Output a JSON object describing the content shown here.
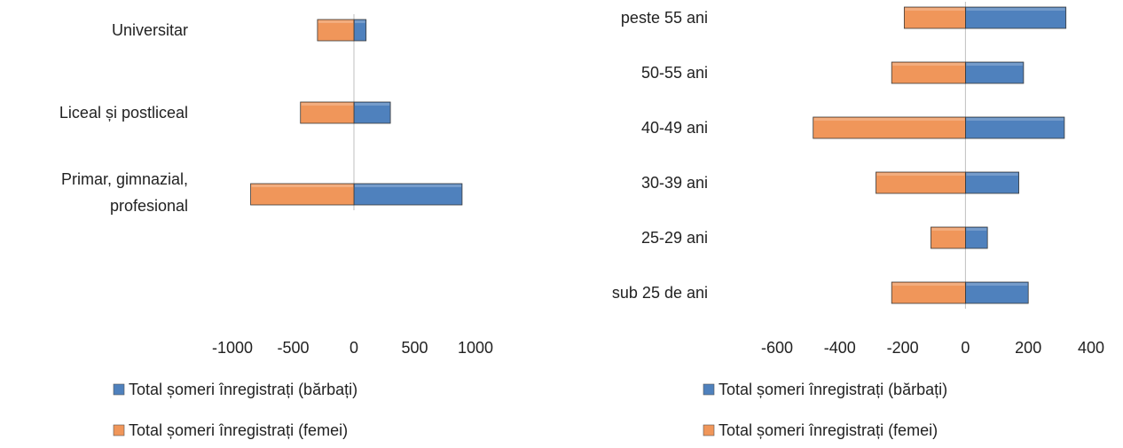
{
  "colors": {
    "male": "#4f81bd",
    "female": "#f0965a",
    "text": "#222222"
  },
  "chart_data": [
    {
      "type": "bar",
      "orientation": "horizontal",
      "stacking": "diverging",
      "categories": [
        "Universitar",
        "Liceal și postliceal",
        "Primar, gimnazial, profesional"
      ],
      "series": [
        {
          "name": "Total șomeri înregistrați (bărbați)",
          "values": [
            100,
            300,
            890
          ],
          "color": "#4f81bd"
        },
        {
          "name": "Total șomeri înregistrați (femei)",
          "values": [
            -300,
            -440,
            -850
          ],
          "color": "#f0965a"
        }
      ],
      "xlim": [
        -1000,
        1000
      ],
      "xticks": [
        "-1000",
        "-500",
        "0",
        "500",
        "1000"
      ],
      "xtick_values": [
        -1000,
        -500,
        0,
        500,
        1000
      ],
      "legend_position": "bottom",
      "grid": false
    },
    {
      "type": "bar",
      "orientation": "horizontal",
      "stacking": "diverging",
      "categories": [
        "peste 55 ani",
        "50-55 ani",
        "40-49 ani",
        "30-39 ani",
        "25-29 ani",
        "sub 25 de ani"
      ],
      "series": [
        {
          "name": "Total șomeri înregistrați (bărbați)",
          "values": [
            320,
            185,
            315,
            170,
            70,
            200
          ],
          "color": "#4f81bd"
        },
        {
          "name": "Total șomeri înregistrați (femei)",
          "values": [
            -195,
            -235,
            -485,
            -285,
            -110,
            -235
          ],
          "color": "#f0965a"
        }
      ],
      "xlim": [
        -600,
        400
      ],
      "xticks": [
        "-600",
        "-400",
        "-200",
        "0",
        "200",
        "400"
      ],
      "xtick_values": [
        -600,
        -400,
        -200,
        0,
        200,
        400
      ],
      "legend_position": "bottom",
      "grid": false
    }
  ]
}
